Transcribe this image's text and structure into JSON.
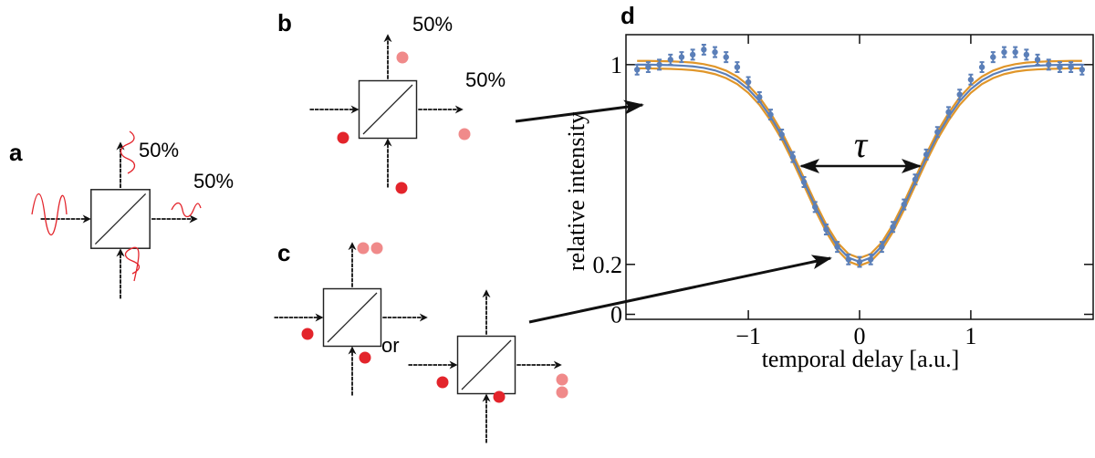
{
  "diagrams": {
    "a": {
      "label": "a",
      "outputs": [
        "50%",
        "50%"
      ]
    },
    "b": {
      "label": "b",
      "outputs": [
        "50%",
        "50%"
      ]
    },
    "c": {
      "label": "c",
      "separator": "or"
    }
  },
  "chart_data": {
    "type": "scatter",
    "panel_label": "d",
    "xlabel": "temporal delay [a.u.]",
    "ylabel": "relative intensity",
    "annotation": "τ",
    "xlim": [
      -2.1,
      2.1
    ],
    "ylim": [
      -0.02,
      1.12
    ],
    "xticks": [
      {
        "value": -1,
        "label": "−1"
      },
      0,
      1
    ],
    "yticks": [
      0,
      0.2,
      1
    ],
    "x": [
      -2.0,
      -1.9,
      -1.8,
      -1.7,
      -1.6,
      -1.5,
      -1.4,
      -1.3,
      -1.2,
      -1.1,
      -1.0,
      -0.9,
      -0.8,
      -0.7,
      -0.6,
      -0.5,
      -0.4,
      -0.3,
      -0.2,
      -0.1,
      0,
      0.1,
      0.2,
      0.3,
      0.4,
      0.5,
      0.6,
      0.7,
      0.8,
      0.9,
      1.0,
      1.1,
      1.2,
      1.3,
      1.4,
      1.5,
      1.6,
      1.7,
      1.8,
      1.9,
      2.0
    ],
    "series": [
      {
        "kind": "line",
        "color": "#e0962a",
        "values": [
          1.015,
          1.015,
          1.014,
          1.013,
          1.011,
          1.008,
          1.002,
          0.992,
          0.976,
          0.952,
          0.917,
          0.869,
          0.806,
          0.731,
          0.642,
          0.546,
          0.449,
          0.36,
          0.288,
          0.242,
          0.225,
          0.242,
          0.288,
          0.36,
          0.449,
          0.546,
          0.642,
          0.731,
          0.806,
          0.869,
          0.917,
          0.952,
          0.976,
          0.992,
          1.002,
          1.008,
          1.011,
          1.013,
          1.014,
          1.015,
          1.015
        ]
      },
      {
        "kind": "line",
        "color": "#e0962a",
        "values": [
          0.985,
          0.985,
          0.984,
          0.983,
          0.981,
          0.978,
          0.972,
          0.962,
          0.946,
          0.922,
          0.887,
          0.839,
          0.776,
          0.701,
          0.612,
          0.516,
          0.419,
          0.33,
          0.258,
          0.212,
          0.195,
          0.212,
          0.258,
          0.33,
          0.419,
          0.516,
          0.612,
          0.701,
          0.776,
          0.839,
          0.887,
          0.922,
          0.946,
          0.962,
          0.972,
          0.978,
          0.981,
          0.983,
          0.984,
          0.985,
          0.985
        ]
      },
      {
        "kind": "line",
        "color": "#5b7fb8",
        "values": [
          1.0,
          1.0,
          0.999,
          0.998,
          0.996,
          0.993,
          0.987,
          0.977,
          0.961,
          0.937,
          0.902,
          0.854,
          0.791,
          0.716,
          0.627,
          0.531,
          0.434,
          0.345,
          0.273,
          0.227,
          0.21,
          0.227,
          0.273,
          0.345,
          0.434,
          0.531,
          0.627,
          0.716,
          0.791,
          0.854,
          0.902,
          0.937,
          0.961,
          0.977,
          0.987,
          0.993,
          0.996,
          0.998,
          0.999,
          1.0,
          1.0
        ]
      },
      {
        "kind": "points",
        "color": "#5b7fb8",
        "values": [
          0.98,
          0.99,
          1.0,
          1.02,
          1.03,
          1.04,
          1.06,
          1.05,
          1.03,
          0.99,
          0.93,
          0.87,
          0.8,
          0.72,
          0.63,
          0.53,
          0.43,
          0.34,
          0.27,
          0.22,
          0.21,
          0.22,
          0.27,
          0.35,
          0.44,
          0.54,
          0.64,
          0.73,
          0.81,
          0.88,
          0.94,
          0.99,
          1.03,
          1.05,
          1.05,
          1.04,
          1.02,
          1.0,
          0.99,
          0.99,
          0.98
        ],
        "errors": [
          0.02,
          0.02,
          0.02,
          0.02,
          0.02,
          0.02,
          0.02,
          0.02,
          0.02,
          0.02,
          0.02,
          0.02,
          0.02,
          0.02,
          0.02,
          0.02,
          0.02,
          0.02,
          0.02,
          0.02,
          0.02,
          0.02,
          0.02,
          0.02,
          0.02,
          0.02,
          0.02,
          0.02,
          0.02,
          0.02,
          0.02,
          0.02,
          0.02,
          0.02,
          0.02,
          0.02,
          0.02,
          0.02,
          0.02,
          0.02,
          0.02
        ]
      }
    ]
  }
}
